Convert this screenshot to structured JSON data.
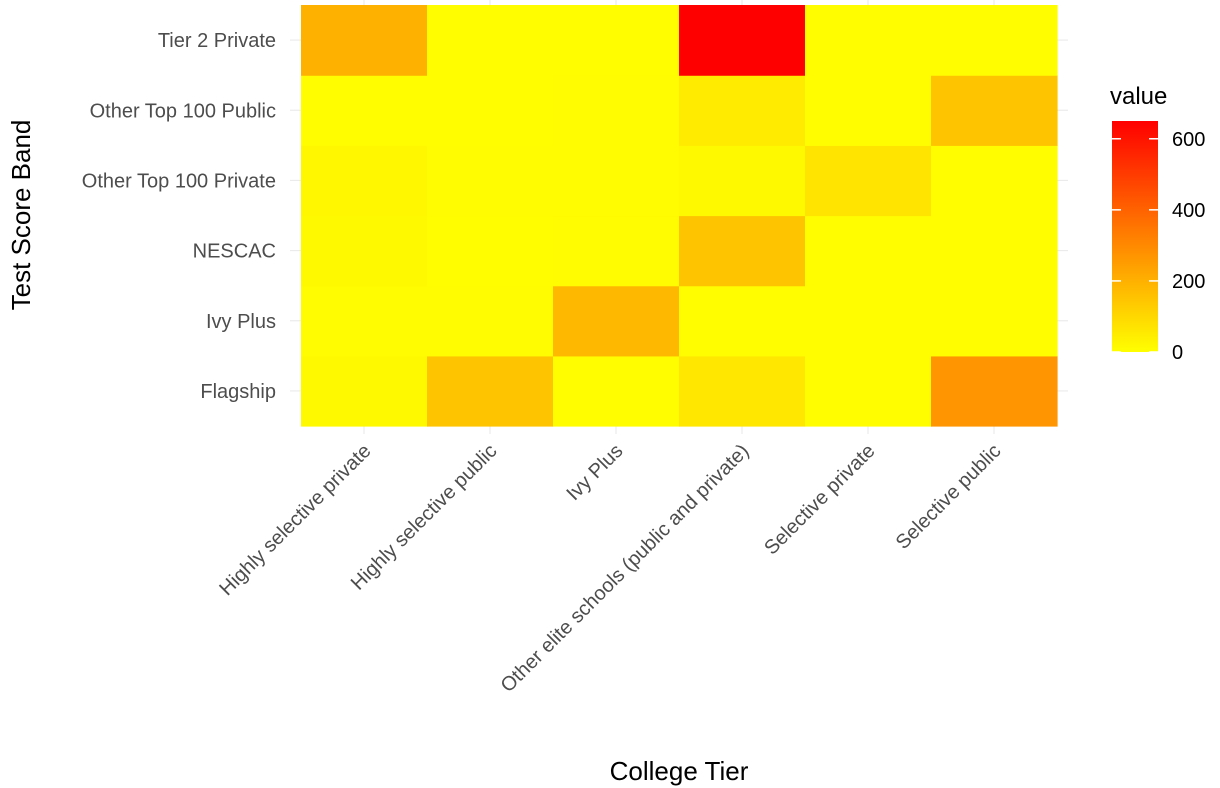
{
  "chart_data": {
    "type": "heatmap",
    "xlabel": "College Tier",
    "ylabel": "Test Score Band",
    "x_categories": [
      "Highly selective private",
      "Highly selective public",
      "Ivy Plus",
      "Other elite schools (public and private)",
      "Selective private",
      "Selective public"
    ],
    "y_categories": [
      "Flagship",
      "Ivy Plus",
      "NESCAC",
      "Other Top 100 Private",
      "Other Top 100 Public",
      "Tier 2 Private"
    ],
    "values": [
      [
        15,
        10,
        15,
        20,
        5,
        200
      ],
      [
        150,
        10,
        5,
        10,
        5,
        5
      ],
      [
        5,
        180,
        10,
        10,
        10,
        5
      ],
      [
        60,
        5,
        150,
        15,
        50,
        650
      ],
      [
        5,
        5,
        5,
        70,
        5,
        5
      ],
      [
        270,
        5,
        5,
        5,
        150,
        5
      ]
    ],
    "legend": {
      "title": "value",
      "ticks": [
        0,
        200,
        400,
        600
      ],
      "range": [
        0,
        650
      ],
      "low_color": "#FFFF00",
      "high_color": "#FF0000",
      "placement": "right"
    },
    "grid": true
  }
}
